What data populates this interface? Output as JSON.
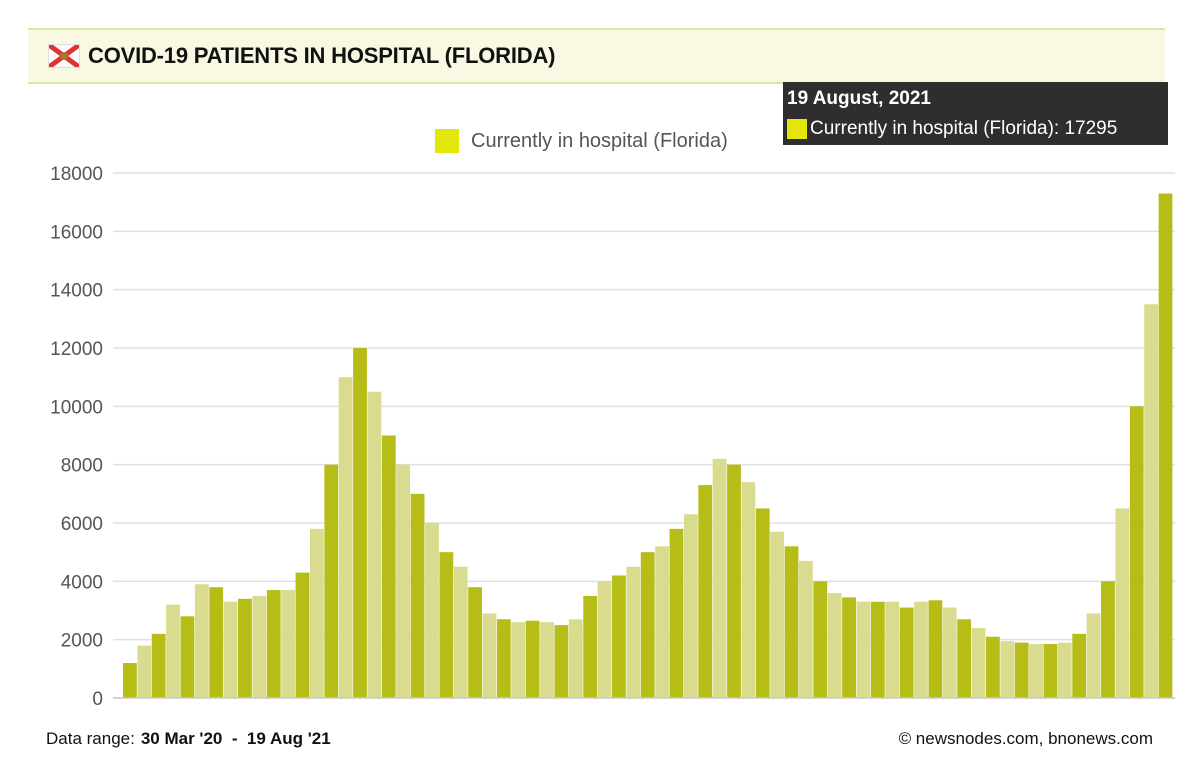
{
  "header": {
    "title": "COVID-19 PATIENTS IN HOSPITAL (FLORIDA)"
  },
  "tooltip": {
    "date": "19 August, 2021",
    "label": "Currently in hospital (Florida): 17295"
  },
  "footer": {
    "range_label": "Data range:",
    "range_value": "30 Mar '20  -  19 Aug '21",
    "credit": "© newsnodes.com, bnonews.com"
  },
  "colors": {
    "bar_dark": "#b6bd17",
    "bar_light": "#d9dc8e",
    "legend": "#e2e60b"
  },
  "chart_data": {
    "type": "bar",
    "title": "COVID-19 PATIENTS IN HOSPITAL (FLORIDA)",
    "legend": "Currently in hospital (Florida)",
    "legend_position": "top",
    "x_granularity": "weekly (approximate)",
    "x_start": "30 Mar '20",
    "x_end": "19 Aug '21",
    "ylim": [
      0,
      18000
    ],
    "yticks": [
      "0",
      "2000",
      "4000",
      "6000",
      "8000",
      "10000",
      "12000",
      "14000",
      "16000",
      "18000"
    ],
    "grid": true,
    "values": [
      1200,
      1800,
      2200,
      3200,
      2800,
      3900,
      3800,
      3300,
      3400,
      3500,
      3700,
      3700,
      4300,
      5800,
      8000,
      11000,
      12000,
      10500,
      9000,
      8000,
      7000,
      6000,
      5000,
      4500,
      3800,
      2900,
      2700,
      2600,
      2650,
      2600,
      2500,
      2700,
      3500,
      4000,
      4200,
      4500,
      5000,
      5200,
      5800,
      6300,
      7300,
      8200,
      8000,
      7400,
      6500,
      5700,
      5200,
      4700,
      4000,
      3600,
      3450,
      3300,
      3300,
      3300,
      3100,
      3300,
      3350,
      3100,
      2700,
      2400,
      2100,
      1950,
      1900,
      1850,
      1850,
      1900,
      2200,
      2900,
      4000,
      6500,
      10000,
      13500,
      17295
    ]
  }
}
